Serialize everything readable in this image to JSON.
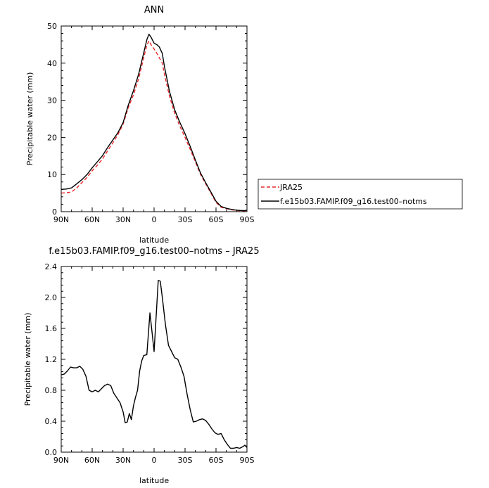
{
  "chart_data": [
    {
      "type": "line",
      "title": "ANN",
      "xlabel": "latitude",
      "ylabel": "Precipitable water (mm)",
      "xlim": [
        90,
        -90
      ],
      "ylim": [
        0,
        50
      ],
      "x_ticks": [
        90,
        60,
        30,
        0,
        -30,
        -60,
        -90
      ],
      "x_tick_labels": [
        "90N",
        "60N",
        "30N",
        "0",
        "30S",
        "60S",
        "90S"
      ],
      "y_ticks": [
        0,
        10,
        20,
        30,
        40,
        50
      ],
      "y_tick_labels": [
        "0",
        "10",
        "20",
        "30",
        "40",
        "50"
      ],
      "grid": false,
      "legend_position": "right",
      "series": [
        {
          "name": "JRA25",
          "color": "#e8282b",
          "dash": "dashed",
          "x": [
            90,
            85,
            80,
            75,
            70,
            65,
            60,
            55,
            50,
            45,
            40,
            35,
            30,
            25,
            20,
            15,
            10,
            7,
            5,
            3,
            0,
            -3,
            -5,
            -8,
            -10,
            -15,
            -20,
            -25,
            -30,
            -35,
            -40,
            -45,
            -50,
            -55,
            -60,
            -65,
            -70,
            -75,
            -80,
            -85,
            -88,
            -90
          ],
          "y": [
            5.0,
            5.1,
            5.3,
            6.4,
            7.8,
            9.2,
            11.0,
            12.5,
            14.2,
            16.4,
            18.5,
            20.8,
            23.6,
            28.0,
            31.5,
            35.8,
            41.5,
            44.8,
            46.0,
            45.0,
            43.8,
            42.5,
            41.5,
            40.0,
            37.0,
            31.0,
            26.5,
            23.0,
            20.0,
            16.8,
            13.4,
            10.0,
            7.5,
            5.0,
            2.5,
            1.2,
            0.8,
            0.5,
            0.3,
            0.2,
            0.2,
            0.3
          ]
        },
        {
          "name": "f.e15b03.FAMIP.f09_g16.test00–notms",
          "color": "#000000",
          "dash": "solid",
          "x": [
            90,
            85,
            80,
            75,
            70,
            65,
            60,
            55,
            50,
            45,
            40,
            35,
            30,
            25,
            20,
            15,
            10,
            7,
            5,
            3,
            0,
            -3,
            -5,
            -8,
            -10,
            -15,
            -20,
            -25,
            -30,
            -35,
            -40,
            -45,
            -50,
            -55,
            -60,
            -65,
            -70,
            -75,
            -80,
            -85,
            -88,
            -90
          ],
          "y": [
            6.0,
            6.1,
            6.4,
            7.5,
            8.6,
            10.0,
            11.8,
            13.4,
            15.1,
            17.3,
            19.3,
            21.3,
            24.0,
            28.7,
            32.6,
            37.0,
            42.8,
            46.3,
            47.8,
            47.0,
            45.4,
            44.9,
            44.4,
            42.6,
            39.1,
            32.3,
            27.4,
            24.0,
            21.0,
            17.6,
            13.9,
            10.4,
            7.8,
            5.3,
            2.8,
            1.4,
            0.9,
            0.6,
            0.4,
            0.3,
            0.3,
            0.4
          ]
        }
      ]
    },
    {
      "type": "line",
      "title": "f.e15b03.FAMIP.f09_g16.test00–notms – JRA25",
      "xlabel": "latitude",
      "ylabel": "Precipitable water (mm)",
      "xlim": [
        90,
        -90
      ],
      "ylim": [
        0,
        2.4
      ],
      "x_ticks": [
        90,
        60,
        30,
        0,
        -30,
        -60,
        -90
      ],
      "x_tick_labels": [
        "90N",
        "60N",
        "30N",
        "0",
        "30S",
        "60S",
        "90S"
      ],
      "y_ticks": [
        0,
        0.4,
        0.8,
        1.2,
        1.6,
        2.0,
        2.4
      ],
      "y_tick_labels": [
        "0.0",
        "0.4",
        "0.8",
        "1.2",
        "1.6",
        "2.0",
        "2.4"
      ],
      "grid": false,
      "series": [
        {
          "color": "#000000",
          "dash": "solid",
          "x": [
            90,
            87,
            84,
            81,
            78,
            75,
            72,
            69,
            66,
            63,
            60,
            57,
            54,
            51,
            48,
            45,
            42,
            39,
            36,
            33,
            30,
            28,
            26,
            24,
            22,
            20,
            18,
            16,
            14,
            12,
            10,
            7,
            4,
            2,
            0,
            -2,
            -4,
            -6,
            -8,
            -11,
            -14,
            -17,
            -20,
            -23,
            -26,
            -29,
            -32,
            -35,
            -38,
            -41,
            -44,
            -47,
            -50,
            -53,
            -56,
            -59,
            -62,
            -65,
            -68,
            -71,
            -74,
            -77,
            -80,
            -83,
            -86,
            -88,
            -90
          ],
          "y": [
            1.0,
            1.01,
            1.05,
            1.1,
            1.09,
            1.09,
            1.11,
            1.07,
            0.98,
            0.8,
            0.78,
            0.8,
            0.78,
            0.82,
            0.86,
            0.88,
            0.86,
            0.76,
            0.7,
            0.64,
            0.52,
            0.38,
            0.39,
            0.5,
            0.42,
            0.6,
            0.71,
            0.8,
            1.05,
            1.18,
            1.25,
            1.26,
            1.8,
            1.55,
            1.3,
            1.75,
            2.22,
            2.21,
            2.0,
            1.65,
            1.38,
            1.3,
            1.22,
            1.2,
            1.1,
            0.98,
            0.75,
            0.55,
            0.39,
            0.4,
            0.42,
            0.43,
            0.41,
            0.36,
            0.3,
            0.25,
            0.23,
            0.24,
            0.16,
            0.1,
            0.05,
            0.05,
            0.06,
            0.05,
            0.07,
            0.09,
            0.06
          ]
        }
      ]
    }
  ]
}
